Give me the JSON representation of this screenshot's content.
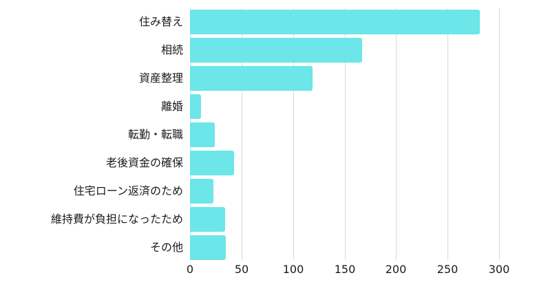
{
  "chart_data": {
    "type": "bar",
    "orientation": "horizontal",
    "title": "",
    "xlabel": "",
    "ylabel": "",
    "categories": [
      "住み替え",
      "相続",
      "資産整理",
      "離婚",
      "転勤・転職",
      "老後資金の確保",
      "住宅ローン返済のため",
      "維持費が負担になったため",
      "その他"
    ],
    "values": [
      281,
      167,
      119,
      11,
      24,
      43,
      23,
      34,
      35
    ],
    "xlim": [
      0,
      300
    ],
    "xticks": [
      "0",
      "50",
      "100",
      "150",
      "200",
      "250",
      "300"
    ],
    "grid": true,
    "legend": null,
    "bar_color": "#6ce6e8"
  }
}
